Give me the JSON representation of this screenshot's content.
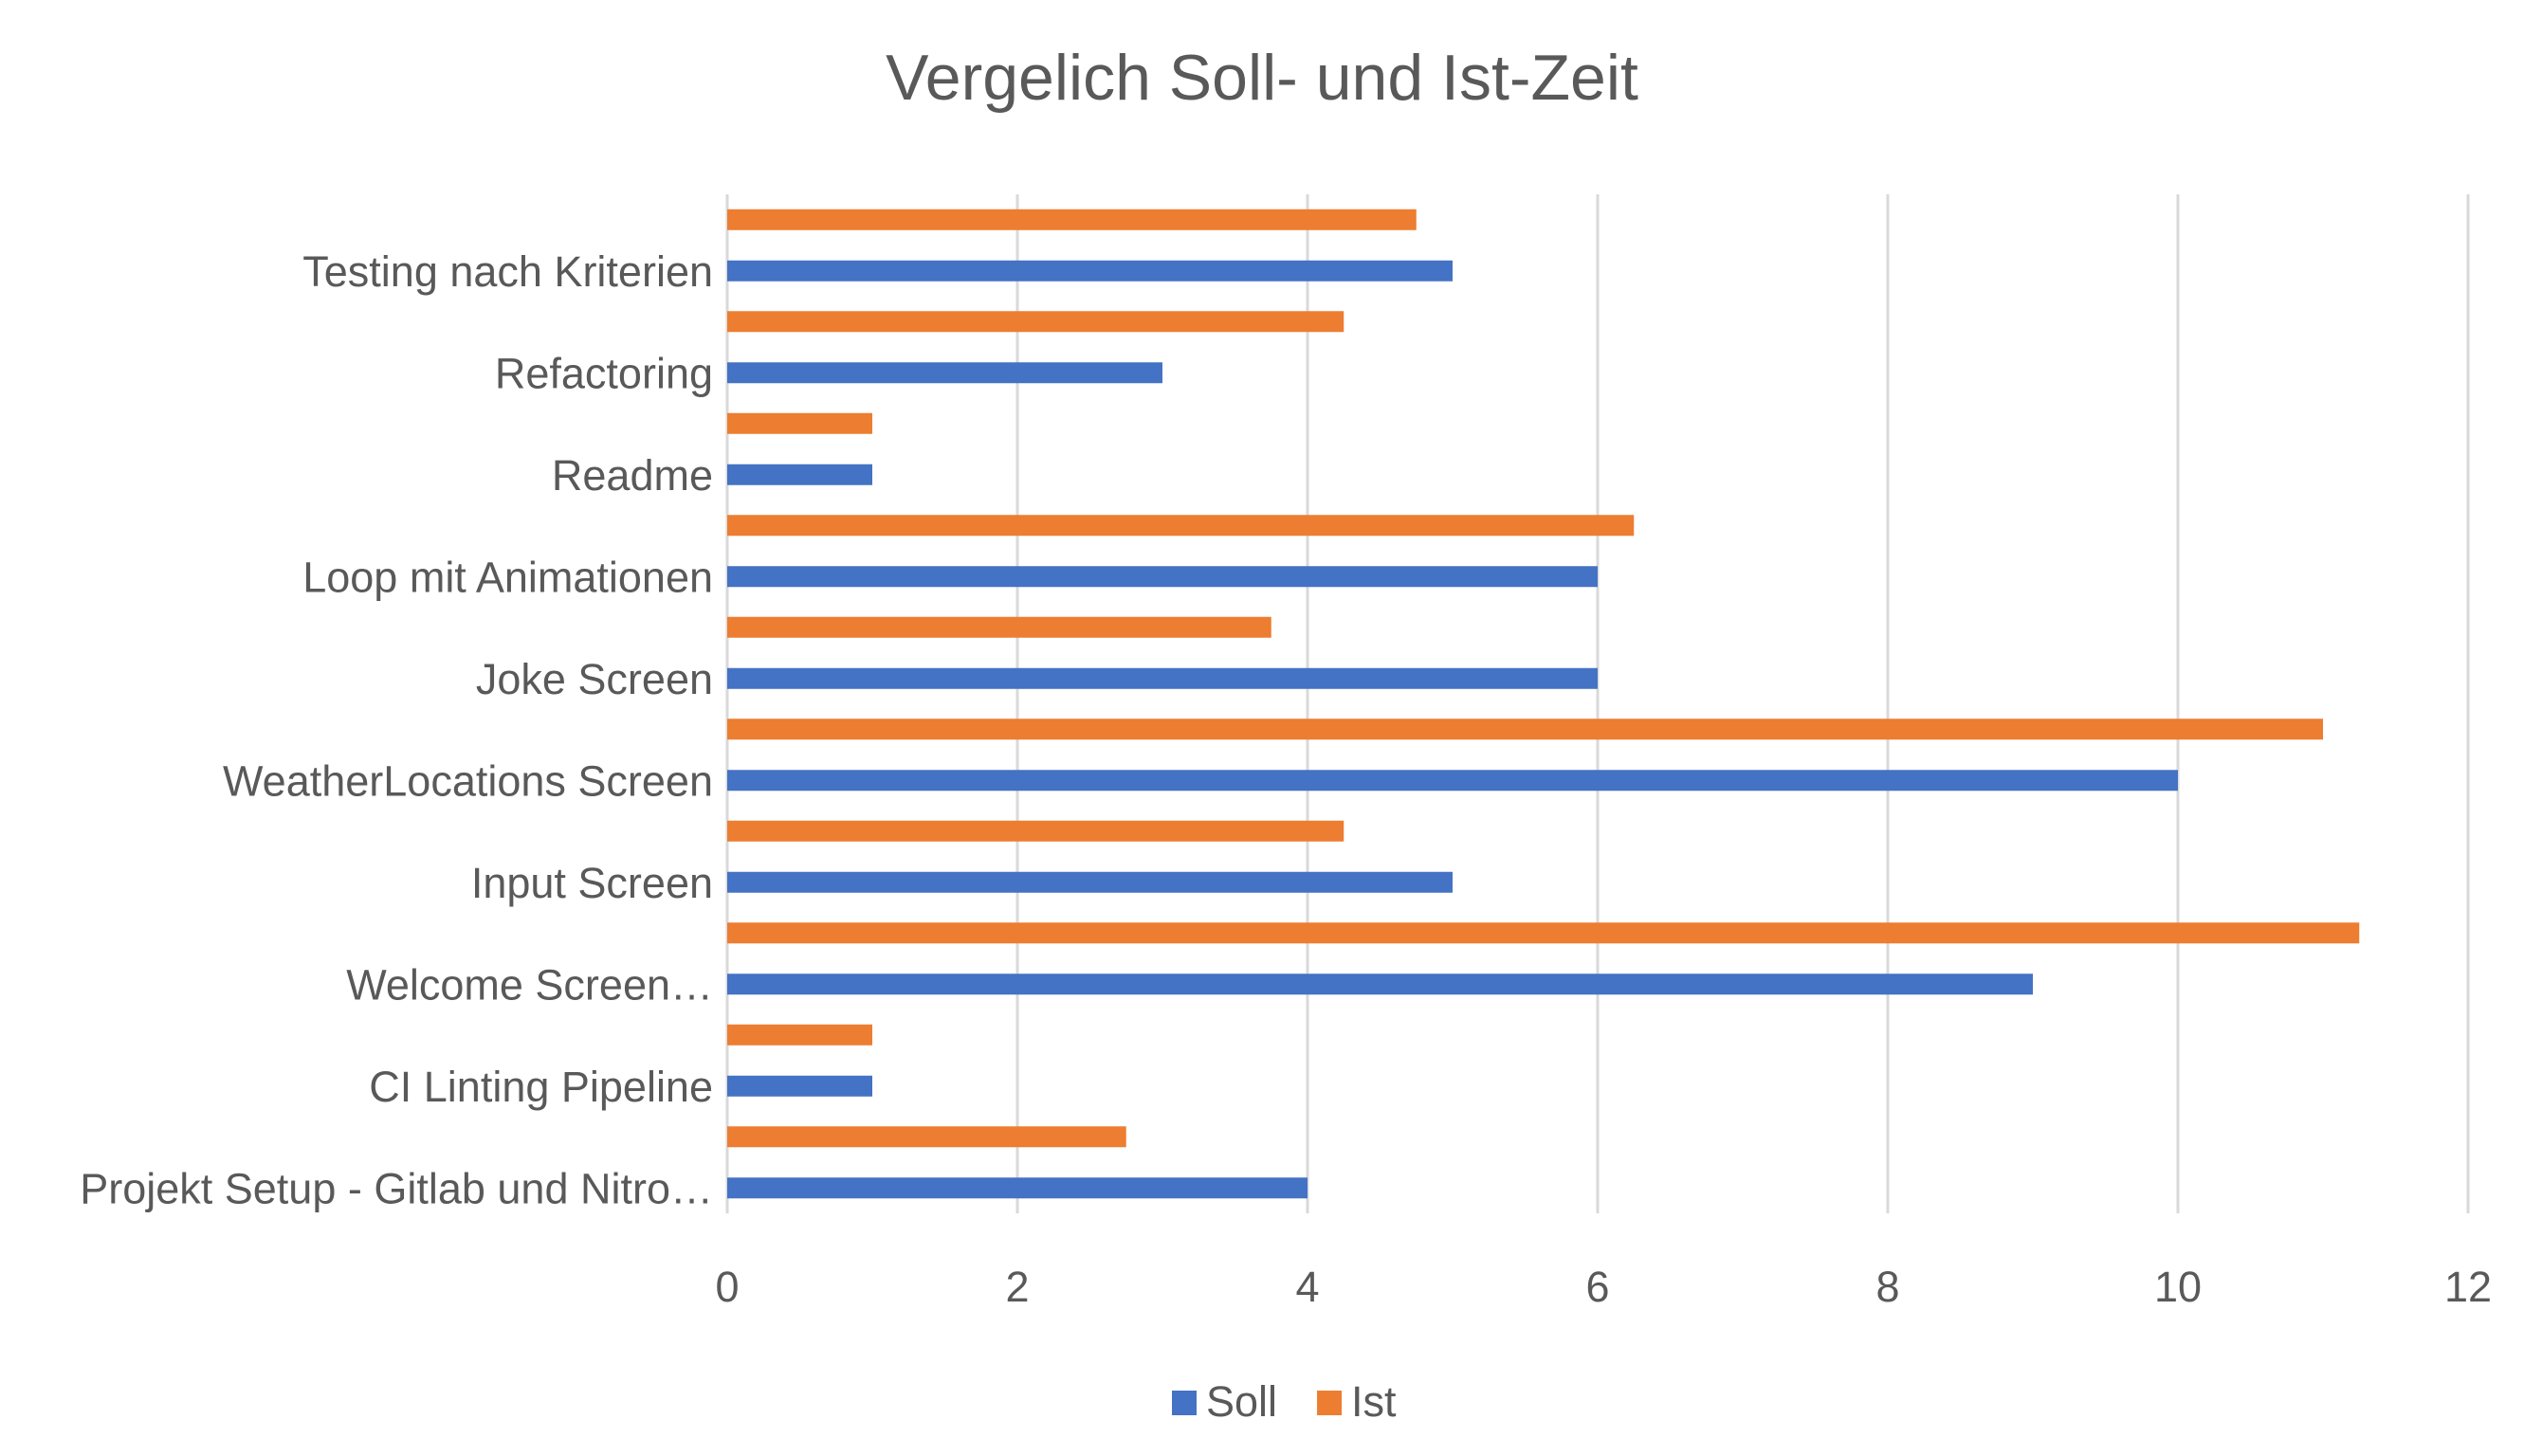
{
  "chart_data": {
    "type": "bar",
    "orientation": "horizontal",
    "title": "Vergelich Soll- und Ist-Zeit",
    "categories": [
      "Projekt Setup - Gitlab und Nitro…",
      "CI Linting Pipeline",
      "Welcome Screen…",
      "Input Screen",
      "WeatherLocations Screen",
      "Joke Screen",
      "Loop mit Animationen",
      "Readme",
      "Refactoring",
      "Testing nach Kriterien"
    ],
    "series": [
      {
        "name": "Soll",
        "color": "#4472C4",
        "values": [
          4,
          1,
          9,
          5,
          10,
          6,
          6,
          1,
          3,
          5
        ]
      },
      {
        "name": "Ist",
        "color": "#ED7D31",
        "values": [
          2.75,
          1,
          11.25,
          4.25,
          11,
          3.75,
          6.25,
          1,
          4.25,
          4.75
        ]
      }
    ],
    "xlim": [
      0,
      12
    ],
    "xticks": [
      "0",
      "2",
      "4",
      "6",
      "8",
      "10",
      "12"
    ],
    "grid": "vertical",
    "legend": "bottom"
  }
}
